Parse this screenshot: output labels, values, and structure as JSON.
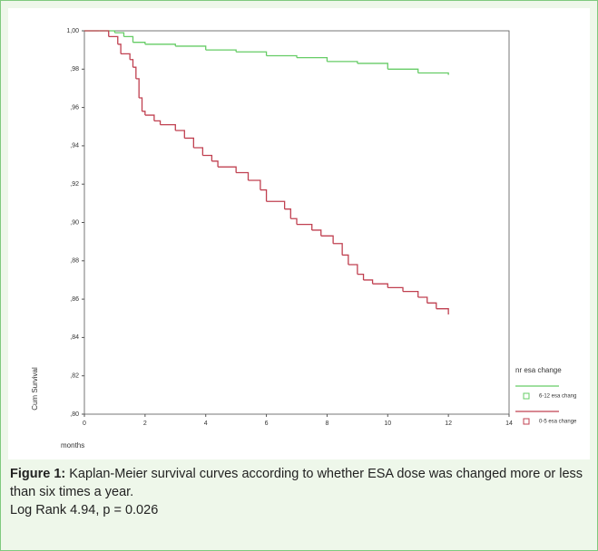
{
  "chart_data": {
    "type": "step",
    "x_label": "months",
    "y_label": "Cum Survival",
    "legend_title": "nr esa change",
    "xlim": [
      0,
      14
    ],
    "ylim": [
      0.8,
      1.0
    ],
    "xticks": [
      0,
      2,
      4,
      6,
      8,
      10,
      12,
      14
    ],
    "yticks": [
      {
        "value": 0.8,
        "label": ",80"
      },
      {
        "value": 0.82,
        "label": ",82"
      },
      {
        "value": 0.84,
        "label": ",84"
      },
      {
        "value": 0.86,
        "label": ",86"
      },
      {
        "value": 0.88,
        "label": ",88"
      },
      {
        "value": 0.9,
        "label": ",90"
      },
      {
        "value": 0.92,
        "label": ",92"
      },
      {
        "value": 0.94,
        "label": ",94"
      },
      {
        "value": 0.96,
        "label": ",96"
      },
      {
        "value": 0.98,
        "label": ",98"
      },
      {
        "value": 1.0,
        "label": "1,00"
      }
    ],
    "series": [
      {
        "name": "6-12 esa chang",
        "color": "#66cc66",
        "x": [
          0,
          0.7,
          1,
          1.3,
          1.6,
          2,
          3,
          4,
          5,
          6,
          7,
          8,
          9,
          10,
          11,
          12
        ],
        "values": [
          1,
          1,
          0.999,
          0.997,
          0.994,
          0.993,
          0.992,
          0.99,
          0.989,
          0.987,
          0.986,
          0.984,
          0.983,
          0.98,
          0.978,
          0.977
        ]
      },
      {
        "name": "0-5 esa change",
        "color": "#c04050",
        "x": [
          0,
          0.5,
          0.8,
          1.1,
          1.2,
          1.5,
          1.6,
          1.7,
          1.8,
          1.9,
          2,
          2.3,
          2.5,
          3,
          3.3,
          3.6,
          3.9,
          4.2,
          4.4,
          5,
          5.4,
          5.8,
          6,
          6.6,
          6.8,
          7,
          7.5,
          7.8,
          8.2,
          8.5,
          8.7,
          9,
          9.2,
          9.5,
          10,
          10.5,
          11,
          11.3,
          11.6,
          12
        ],
        "values": [
          1,
          1,
          0.997,
          0.993,
          0.988,
          0.985,
          0.981,
          0.975,
          0.965,
          0.958,
          0.956,
          0.953,
          0.951,
          0.948,
          0.944,
          0.939,
          0.935,
          0.932,
          0.929,
          0.926,
          0.922,
          0.917,
          0.911,
          0.907,
          0.902,
          0.899,
          0.896,
          0.893,
          0.889,
          0.883,
          0.878,
          0.873,
          0.87,
          0.868,
          0.866,
          0.864,
          0.861,
          0.858,
          0.855,
          0.852
        ]
      }
    ]
  },
  "caption": {
    "label": "Figure 1:",
    "text": "Kaplan-Meier survival curves according to whether ESA dose was changed more or less than six times a year.",
    "stats": "Log Rank 4.94, p = 0.026"
  }
}
